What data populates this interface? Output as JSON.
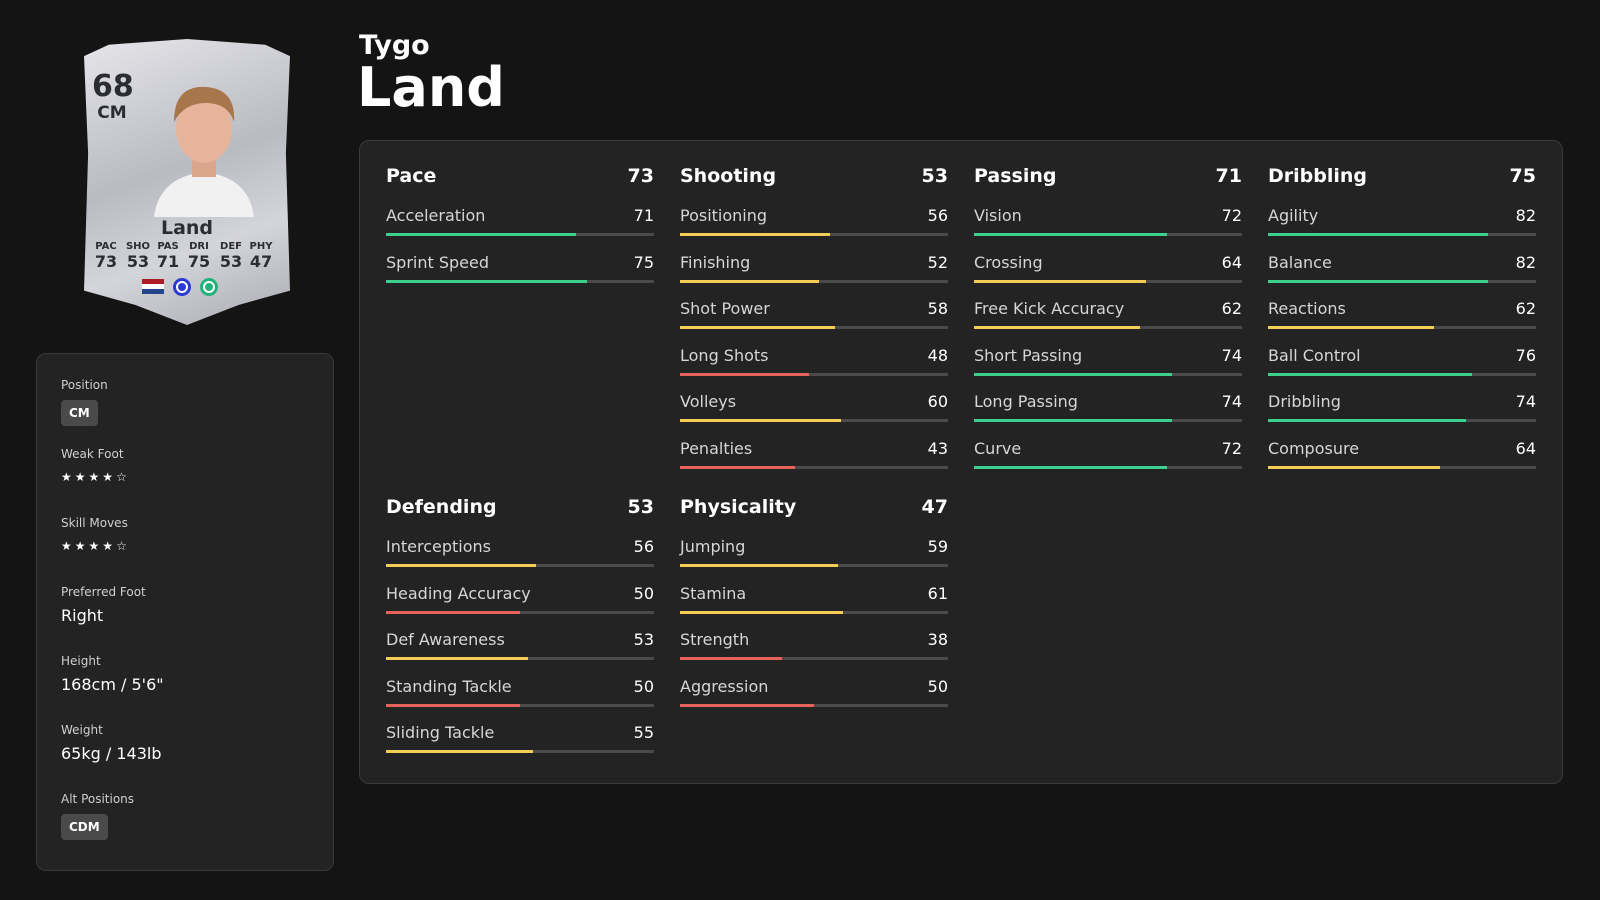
{
  "player": {
    "first_name": "Tygo",
    "last_name": "Land"
  },
  "card": {
    "rating": 68,
    "position": "CM",
    "name": "Land",
    "stats": [
      {
        "label": "PAC",
        "value": 73
      },
      {
        "label": "SHO",
        "value": 53
      },
      {
        "label": "PAS",
        "value": 71
      },
      {
        "label": "DRI",
        "value": 75
      },
      {
        "label": "DEF",
        "value": 53
      },
      {
        "label": "PHY",
        "value": 47
      }
    ]
  },
  "info": {
    "position": {
      "label": "Position",
      "value": "CM"
    },
    "weak_foot": {
      "label": "Weak Foot",
      "stars": 4,
      "max": 5
    },
    "skill_moves": {
      "label": "Skill Moves",
      "stars": 4,
      "max": 5
    },
    "preferred_foot": {
      "label": "Preferred Foot",
      "value": "Right"
    },
    "height": {
      "label": "Height",
      "value": "168cm / 5'6\""
    },
    "weight": {
      "label": "Weight",
      "value": "65kg / 143lb"
    },
    "alt_positions": {
      "label": "Alt Positions",
      "value": "CDM"
    }
  },
  "bar_range": [
    0,
    100
  ],
  "bar_colors": [
    {
      "min": 70,
      "color": "#3ccf8e"
    },
    {
      "min": 51,
      "color": "#f2cc55"
    },
    {
      "min": 0,
      "color": "#e8625c"
    }
  ],
  "groups": [
    {
      "name": "Pace",
      "value": 73,
      "stats": [
        {
          "name": "Acceleration",
          "value": 71
        },
        {
          "name": "Sprint Speed",
          "value": 75
        }
      ]
    },
    {
      "name": "Shooting",
      "value": 53,
      "stats": [
        {
          "name": "Positioning",
          "value": 56
        },
        {
          "name": "Finishing",
          "value": 52
        },
        {
          "name": "Shot Power",
          "value": 58
        },
        {
          "name": "Long Shots",
          "value": 48
        },
        {
          "name": "Volleys",
          "value": 60
        },
        {
          "name": "Penalties",
          "value": 43
        }
      ]
    },
    {
      "name": "Passing",
      "value": 71,
      "stats": [
        {
          "name": "Vision",
          "value": 72
        },
        {
          "name": "Crossing",
          "value": 64
        },
        {
          "name": "Free Kick Accuracy",
          "value": 62
        },
        {
          "name": "Short Passing",
          "value": 74
        },
        {
          "name": "Long Passing",
          "value": 74
        },
        {
          "name": "Curve",
          "value": 72
        }
      ]
    },
    {
      "name": "Dribbling",
      "value": 75,
      "stats": [
        {
          "name": "Agility",
          "value": 82
        },
        {
          "name": "Balance",
          "value": 82
        },
        {
          "name": "Reactions",
          "value": 62
        },
        {
          "name": "Ball Control",
          "value": 76
        },
        {
          "name": "Dribbling",
          "value": 74
        },
        {
          "name": "Composure",
          "value": 64
        }
      ]
    },
    {
      "name": "Defending",
      "value": 53,
      "stats": [
        {
          "name": "Interceptions",
          "value": 56
        },
        {
          "name": "Heading Accuracy",
          "value": 50
        },
        {
          "name": "Def Awareness",
          "value": 53
        },
        {
          "name": "Standing Tackle",
          "value": 50
        },
        {
          "name": "Sliding Tackle",
          "value": 55
        }
      ]
    },
    {
      "name": "Physicality",
      "value": 47,
      "stats": [
        {
          "name": "Jumping",
          "value": 59
        },
        {
          "name": "Stamina",
          "value": 61
        },
        {
          "name": "Strength",
          "value": 38
        },
        {
          "name": "Aggression",
          "value": 50
        }
      ]
    }
  ]
}
